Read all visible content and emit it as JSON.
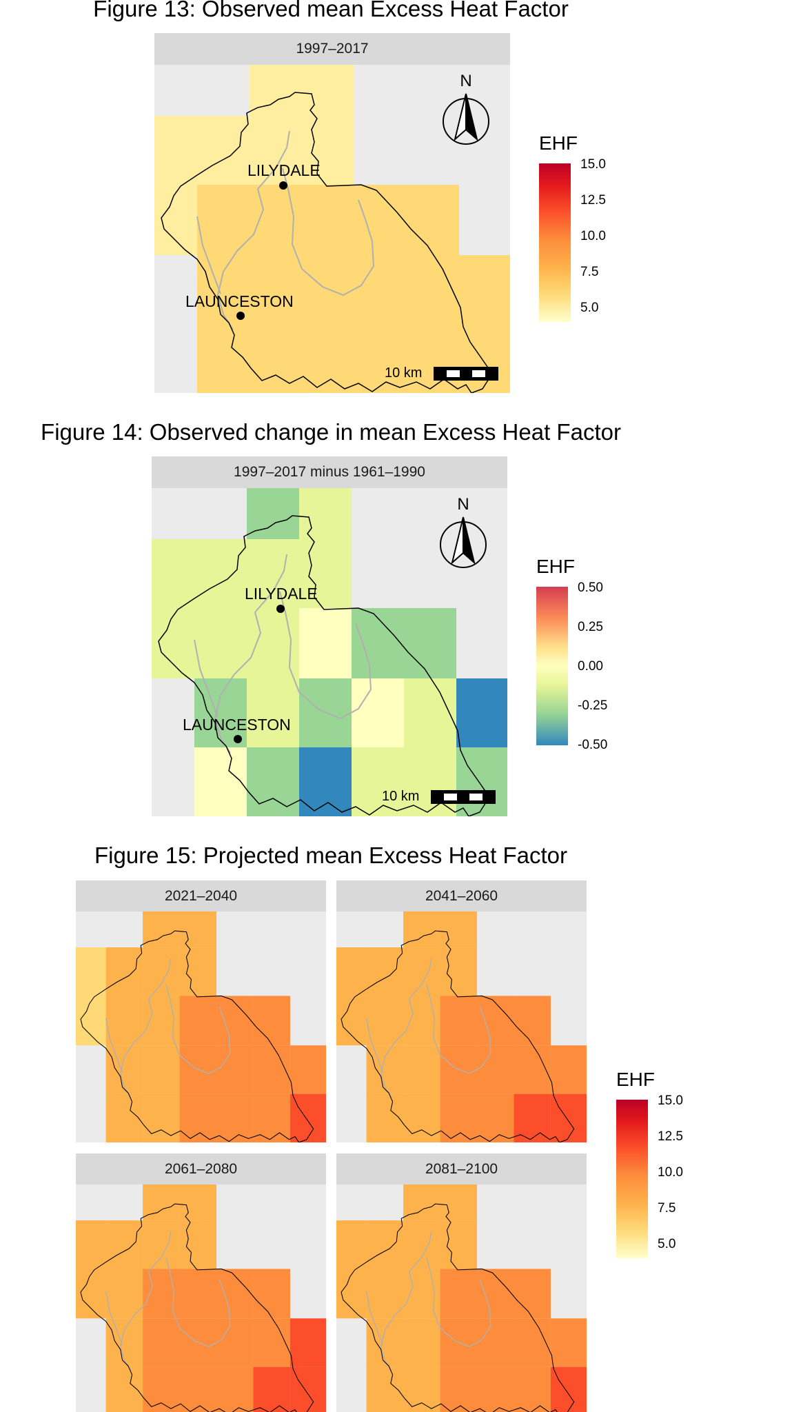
{
  "figures": [
    {
      "title": "Figure 13: Observed mean Excess Heat Factor",
      "panels": [
        {
          "label": "1997–2017",
          "palette": "obs"
        }
      ],
      "towns": [
        {
          "name": "LILYDALE"
        },
        {
          "name": "LAUNCESTON"
        }
      ],
      "north_label": "N",
      "scale_label": "10 km",
      "legend": {
        "title": "EHF",
        "ticks": [
          "15.0",
          "12.5",
          "10.0",
          "7.5",
          "5.0"
        ]
      }
    },
    {
      "title": "Figure 14: Observed change in mean Excess Heat Factor",
      "panels": [
        {
          "label": "1997–2017 minus 1961–1990",
          "palette": "change"
        }
      ],
      "towns": [
        {
          "name": "LILYDALE"
        },
        {
          "name": "LAUNCESTON"
        }
      ],
      "north_label": "N",
      "scale_label": "10 km",
      "legend": {
        "title": "EHF",
        "ticks": [
          "0.50",
          "0.25",
          "0.00",
          "-0.25",
          "-0.50"
        ]
      }
    },
    {
      "title": "Figure 15: Projected mean Excess Heat Factor",
      "panels": [
        {
          "label": "2021–2040",
          "palette": "p1"
        },
        {
          "label": "2041–2060",
          "palette": "p2"
        },
        {
          "label": "2061–2080",
          "palette": "p3"
        },
        {
          "label": "2081–2100",
          "palette": "p4"
        }
      ],
      "legend": {
        "title": "EHF",
        "ticks": [
          "15.0",
          "12.5",
          "10.0",
          "7.5",
          "5.0"
        ]
      }
    }
  ],
  "colors": {
    "heat_scale": [
      "#ffffcc",
      "#ffeda0",
      "#fed976",
      "#feb24c",
      "#fd8d3c",
      "#fc4e2a",
      "#e31a1c",
      "#bd0026"
    ],
    "diverging_scale": [
      "#d53e4f",
      "#fc8d59",
      "#fee08b",
      "#ffffbf",
      "#e6f598",
      "#99d594",
      "#3288bd"
    ],
    "panel_background": "#ebebeb",
    "strip_background": "#d9d9d9",
    "boundary": "#000000",
    "river": "#b0b0b0"
  }
}
